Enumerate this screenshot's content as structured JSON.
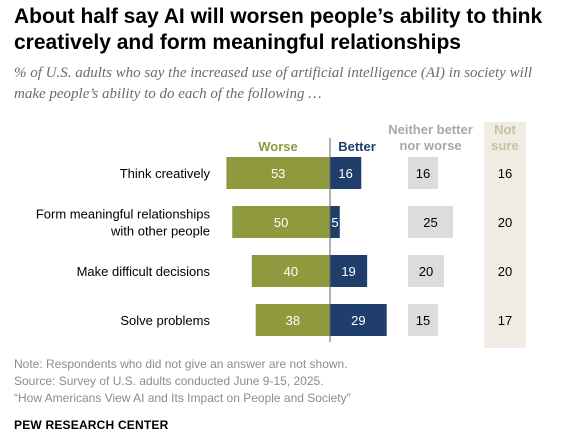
{
  "header": {
    "title": "About half say AI will worsen people’s ability to think creatively and form meaningful relationships",
    "subtitle": "% of U.S. adults who say the increased use of artificial intelligence (AI) in society will make people’s ability to do each of the following …"
  },
  "colors": {
    "worse": "#8f9a3f",
    "better": "#1f3e6b",
    "neither": "#dcdcdc",
    "not_sure": "#f0ece3",
    "worse_header": "#8f9a3f",
    "better_header": "#1f3e6b",
    "neither_header": "#a8a8a8",
    "not_sure_header": "#c8c0a4"
  },
  "chart_data": {
    "type": "bar",
    "categories": [
      [
        "Think creatively"
      ],
      [
        "Form meaningful relationships",
        "with other people"
      ],
      [
        "Make difficult decisions"
      ],
      [
        "Solve problems"
      ]
    ],
    "column_headers": {
      "worse": "Worse",
      "better": "Better",
      "neither": [
        "Neither better",
        "nor worse"
      ],
      "not_sure": [
        "Not",
        "sure"
      ]
    },
    "series": [
      {
        "name": "Worse",
        "values": [
          53,
          50,
          40,
          38
        ]
      },
      {
        "name": "Better",
        "values": [
          16,
          5,
          19,
          29
        ]
      },
      {
        "name": "Neither better nor worse",
        "values": [
          16,
          25,
          20,
          15
        ]
      },
      {
        "name": "Not sure",
        "values": [
          16,
          20,
          20,
          17
        ]
      }
    ]
  },
  "footer": {
    "note": "Note: Respondents who did not give an answer are not shown.",
    "source": "Source: Survey of U.S. adults conducted June 9-15, 2025.",
    "report": "“How Americans View AI and Its Impact on People and Society”",
    "org": "PEW RESEARCH CENTER"
  }
}
